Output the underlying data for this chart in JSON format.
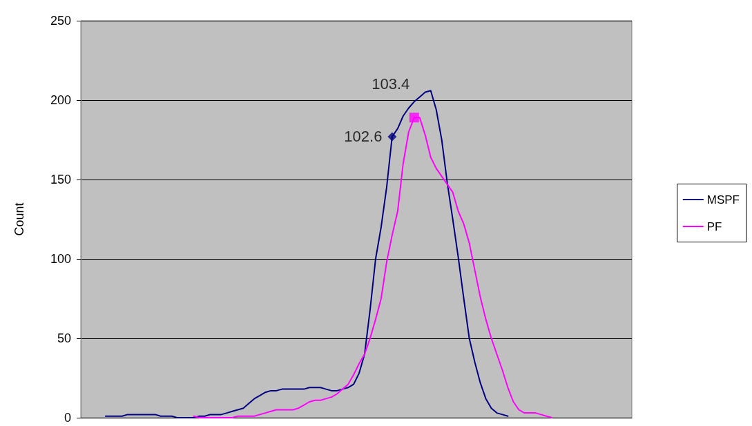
{
  "chart_data": {
    "type": "line",
    "ylabel": "Count",
    "annotations": [
      "102.6",
      "103.4"
    ],
    "categories": [
      null,
      null,
      null,
      null,
      null,
      null,
      null,
      null,
      null,
      null,
      null,
      null,
      null,
      null,
      null,
      null,
      null,
      null,
      null,
      null,
      null,
      null,
      null,
      null,
      null,
      null,
      null,
      null,
      null,
      null,
      null,
      null,
      null,
      null,
      null,
      null,
      null,
      null,
      null,
      null,
      null,
      null,
      null,
      null,
      null,
      null,
      null,
      null,
      null,
      null,
      null,
      null,
      null,
      null,
      null,
      null,
      null,
      null,
      null,
      null,
      null,
      null,
      null,
      null,
      null,
      null,
      null,
      null,
      null,
      null,
      null,
      null,
      null,
      null,
      null,
      null,
      null,
      null,
      null,
      null,
      null,
      null,
      null,
      null,
      null,
      null,
      null,
      null,
      null,
      null,
      null,
      null,
      null,
      null,
      null,
      null,
      null,
      null,
      null,
      null
    ],
    "ylim": [
      0,
      250
    ],
    "yticks": [
      0,
      50,
      100,
      150,
      200,
      250
    ],
    "grid": "y",
    "legend": "right",
    "marker": "none",
    "line_style": "solid",
    "series": [
      {
        "name": "MSPF",
        "color": "#000080",
        "values": [
          null,
          null,
          null,
          null,
          1,
          1,
          1,
          1,
          2,
          2,
          2,
          2,
          2,
          2,
          1,
          1,
          1,
          0,
          0,
          0,
          0,
          1,
          1,
          2,
          2,
          2,
          3,
          4,
          5,
          6,
          9,
          12,
          14,
          16,
          17,
          17,
          18,
          18,
          18,
          18,
          18,
          19,
          19,
          19,
          18,
          17,
          17,
          18,
          19,
          21,
          28,
          40,
          68,
          100,
          120,
          145,
          177,
          182,
          190,
          195,
          199,
          202,
          205,
          206,
          194,
          175,
          148,
          125,
          101,
          75,
          50,
          35,
          22,
          12,
          6,
          3,
          2,
          1,
          null,
          null,
          null,
          null,
          null,
          null,
          null,
          null,
          null,
          null,
          null,
          null,
          null,
          null,
          null,
          null,
          null,
          null,
          null,
          null,
          null,
          null
        ]
      },
      {
        "name": "PF",
        "color": "#ff00ff",
        "values": [
          null,
          null,
          null,
          null,
          null,
          null,
          null,
          null,
          null,
          null,
          null,
          null,
          null,
          null,
          null,
          null,
          null,
          null,
          null,
          null,
          1,
          0,
          0,
          0,
          0,
          0,
          0,
          0,
          1,
          1,
          1,
          1,
          2,
          3,
          4,
          5,
          5,
          5,
          5,
          6,
          8,
          10,
          11,
          11,
          12,
          13,
          15,
          18,
          21,
          27,
          34,
          40,
          50,
          62,
          75,
          98,
          115,
          130,
          160,
          180,
          189,
          189,
          178,
          164,
          157,
          152,
          147,
          142,
          130,
          122,
          110,
          93,
          76,
          62,
          50,
          40,
          30,
          19,
          10,
          5,
          3,
          3,
          3,
          2,
          1,
          0,
          null,
          null,
          null,
          null,
          null,
          null,
          null,
          null,
          null,
          null,
          null,
          null,
          null,
          null
        ]
      },
      {
        "type": "scatter",
        "color": "#000080",
        "marker": "diamond",
        "values": [
          null,
          null,
          null,
          null,
          null,
          null,
          null,
          null,
          null,
          null,
          null,
          null,
          null,
          null,
          null,
          null,
          null,
          null,
          null,
          null,
          null,
          null,
          null,
          null,
          null,
          null,
          null,
          null,
          null,
          null,
          null,
          null,
          null,
          null,
          null,
          null,
          null,
          null,
          null,
          null,
          null,
          null,
          null,
          null,
          null,
          null,
          null,
          null,
          null,
          null,
          null,
          null,
          null,
          null,
          null,
          null,
          177,
          null,
          null,
          null,
          null,
          null,
          null,
          null,
          null,
          null,
          null,
          null,
          null,
          null,
          null,
          null,
          null,
          null,
          null,
          null,
          null,
          null,
          null,
          null,
          null,
          null,
          null,
          null,
          null,
          null,
          null,
          null,
          null,
          null,
          null,
          null,
          null,
          null,
          null,
          null,
          null,
          null,
          null,
          null
        ]
      },
      {
        "type": "scatter",
        "color": "#ff00ff",
        "marker": "square",
        "values": [
          null,
          null,
          null,
          null,
          null,
          null,
          null,
          null,
          null,
          null,
          null,
          null,
          null,
          null,
          null,
          null,
          null,
          null,
          null,
          null,
          null,
          null,
          null,
          null,
          null,
          null,
          null,
          null,
          null,
          null,
          null,
          null,
          null,
          null,
          null,
          null,
          null,
          null,
          null,
          null,
          null,
          null,
          null,
          null,
          null,
          null,
          null,
          null,
          null,
          null,
          null,
          null,
          null,
          null,
          null,
          null,
          null,
          null,
          null,
          null,
          189,
          null,
          null,
          null,
          null,
          null,
          null,
          null,
          null,
          null,
          null,
          null,
          null,
          null,
          null,
          null,
          null,
          null,
          null,
          null,
          null,
          null,
          null,
          null,
          null,
          null,
          null,
          null,
          null,
          null,
          null,
          null,
          null,
          null,
          null,
          null,
          null,
          null,
          null,
          null
        ]
      }
    ]
  }
}
